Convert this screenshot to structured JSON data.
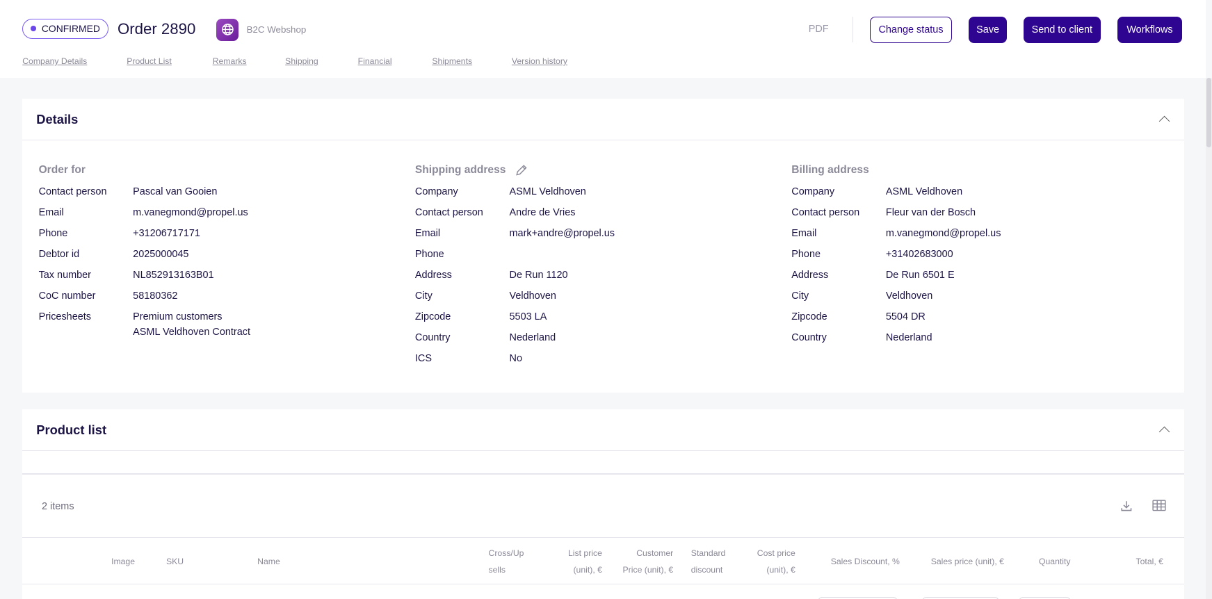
{
  "header": {
    "status": "CONFIRMED",
    "title": "Order 2890",
    "channel": "B2C Webshop",
    "channel_icon": "globe-icon",
    "pdf": "PDF",
    "buttons": {
      "change_status": "Change status",
      "save": "Save",
      "send": "Send to client",
      "workflows": "Workflows"
    },
    "primary_color": "#2e0590"
  },
  "tabs": [
    "Company Details",
    "Product List",
    "Remarks",
    "Shipping",
    "Financial",
    "Shipments",
    "Version history"
  ],
  "details": {
    "title": "Details",
    "order_for": {
      "title": "Order for",
      "rows": [
        [
          "Contact person",
          "Pascal van Gooien"
        ],
        [
          "Email",
          "m.vanegmond@propel.us"
        ],
        [
          "Phone",
          "+31206717171"
        ],
        [
          "Debtor id",
          "2025000045"
        ],
        [
          "Tax number",
          "NL852913163B01"
        ],
        [
          "CoC number",
          "58180362"
        ],
        [
          "Pricesheets",
          "Premium customers\nASML Veldhoven Contract"
        ]
      ]
    },
    "shipping": {
      "title": "Shipping address",
      "rows": [
        [
          "Company",
          "ASML Veldhoven"
        ],
        [
          "Contact person",
          "Andre de Vries"
        ],
        [
          "Email",
          "mark+andre@propel.us"
        ],
        [
          "Phone",
          ""
        ],
        [
          "Address",
          "De Run 1120"
        ],
        [
          "City",
          "Veldhoven"
        ],
        [
          "Zipcode",
          "5503 LA"
        ],
        [
          "Country",
          "Nederland"
        ],
        [
          "ICS",
          "No"
        ]
      ]
    },
    "billing": {
      "title": "Billing address",
      "rows": [
        [
          "Company",
          "ASML Veldhoven"
        ],
        [
          "Contact person",
          "Fleur van der Bosch"
        ],
        [
          "Email",
          "m.vanegmond@propel.us"
        ],
        [
          "Phone",
          "+31402683000"
        ],
        [
          "Address",
          "De Run 6501 E"
        ],
        [
          "City",
          "Veldhoven"
        ],
        [
          "Zipcode",
          "5504 DR"
        ],
        [
          "Country",
          "Nederland"
        ]
      ]
    }
  },
  "product_list": {
    "title": "Product list",
    "count": "2 items",
    "columns": [
      "Image",
      "SKU",
      "Name",
      "Cross/Up sells",
      "List price (unit), €",
      "Customer Price (unit), €",
      "Standard discount",
      "Cost price (unit), €",
      "Sales Discount, %",
      "Sales price (unit), €",
      "Quantity",
      "Total, €"
    ]
  }
}
